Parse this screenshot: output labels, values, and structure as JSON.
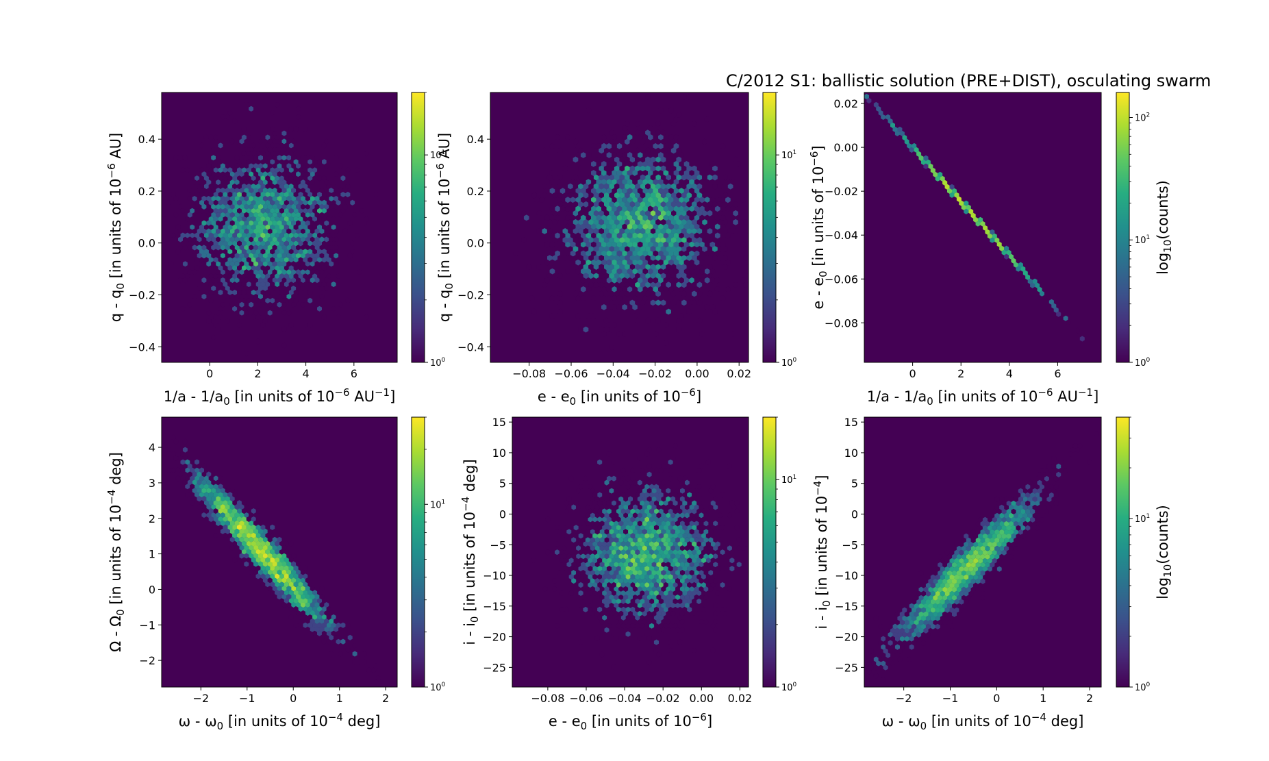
{
  "title": "C/2012 S1: ballistic solution (PRE+DIST), osculating swarm",
  "colormap": {
    "low": "#440154",
    "mid": "#21918c",
    "high": "#fde725"
  },
  "chart_data": [
    {
      "type": "heatmap",
      "subtype": "hexbin-log",
      "xlabel": {
        "main": "1/a - 1/a",
        "sub": "0",
        "tail": " [in units of 10",
        "sup": "−6",
        "end": " AU",
        "sup2": "−1",
        "end2": "]"
      },
      "ylabel": {
        "main": "q - q",
        "sub": "0",
        "tail": " [in units of 10",
        "sup": "−6",
        "end": " AU]"
      },
      "xlim": [
        -2,
        7.8
      ],
      "ylim": [
        -0.46,
        0.58
      ],
      "xticks": [
        0,
        2,
        4,
        6
      ],
      "xtick_labels": [
        "0",
        "2",
        "4",
        "6"
      ],
      "yticks": [
        -0.4,
        -0.2,
        0.0,
        0.2,
        0.4
      ],
      "ytick_labels": [
        "−0.4",
        "−0.2",
        "0.0",
        "0.2",
        "0.4"
      ],
      "distribution": {
        "kind": "gaussian",
        "center": [
          2.2,
          0.07
        ],
        "sigma": [
          1.5,
          0.15
        ],
        "n": 2400,
        "seed": 11
      },
      "colorbar": {
        "min": 1,
        "max": 20,
        "tick_values": [
          1,
          10
        ],
        "tick_labels": [
          [
            "10",
            "0"
          ],
          [
            "10",
            "1"
          ]
        ],
        "label": null
      }
    },
    {
      "type": "heatmap",
      "subtype": "hexbin-log",
      "xlabel": {
        "main": "e - e",
        "sub": "0",
        "tail": " [in units of 10",
        "sup": "−6",
        "end": "]"
      },
      "ylabel": {
        "main": "q - q",
        "sub": "0",
        "tail": " [in units of 10",
        "sup": "−6",
        "end": " AU]"
      },
      "xlim": [
        -0.0985,
        0.0245
      ],
      "ylim": [
        -0.46,
        0.58
      ],
      "xticks": [
        -0.08,
        -0.06,
        -0.04,
        -0.02,
        0.0,
        0.02
      ],
      "xtick_labels": [
        "−0.08",
        "−0.06",
        "−0.04",
        "−0.02",
        "0.00",
        "0.02"
      ],
      "yticks": [
        -0.4,
        -0.2,
        0.0,
        0.2,
        0.4
      ],
      "ytick_labels": [
        "−0.4",
        "−0.2",
        "0.0",
        "0.2",
        "0.4"
      ],
      "distribution": {
        "kind": "gaussian",
        "center": [
          -0.028,
          0.07
        ],
        "sigma": [
          0.019,
          0.15
        ],
        "n": 2400,
        "seed": 23
      },
      "colorbar": {
        "min": 1,
        "max": 20,
        "tick_values": [
          1,
          10
        ],
        "tick_labels": [
          [
            "10",
            "0"
          ],
          [
            "10",
            "1"
          ]
        ],
        "label": null
      }
    },
    {
      "type": "heatmap",
      "subtype": "hexbin-log",
      "xlabel": {
        "main": "1/a - 1/a",
        "sub": "0",
        "tail": " [in units of 10",
        "sup": "−6",
        "end": " AU",
        "sup2": "−1",
        "end2": "]"
      },
      "ylabel": {
        "main": "e - e",
        "sub": "0",
        "tail": " [in units of 10",
        "sup": "−6",
        "end": "]"
      },
      "xlim": [
        -2,
        7.8
      ],
      "ylim": [
        -0.098,
        0.025
      ],
      "xticks": [
        0,
        2,
        4,
        6
      ],
      "xtick_labels": [
        "0",
        "2",
        "4",
        "6"
      ],
      "yticks": [
        -0.08,
        -0.06,
        -0.04,
        -0.02,
        0.0,
        0.02
      ],
      "ytick_labels": [
        "−0.08",
        "−0.06",
        "−0.04",
        "−0.02",
        "0.00",
        "0.02"
      ],
      "distribution": {
        "kind": "linear",
        "slope": -0.01235,
        "intercept": 0.0,
        "x_center": 2.3,
        "x_sigma": 1.45,
        "x_range": [
          -1.9,
          7.0
        ],
        "n": 2400,
        "seed": 31
      },
      "colorbar": {
        "min": 1,
        "max": 160,
        "tick_values": [
          1,
          10,
          100
        ],
        "tick_labels": [
          [
            "10",
            "0"
          ],
          [
            "10",
            "1"
          ],
          [
            "10",
            "2"
          ]
        ],
        "label": {
          "main": "log",
          "sub": "10",
          "tail": "(counts)"
        }
      }
    },
    {
      "type": "heatmap",
      "subtype": "hexbin-log",
      "xlabel": {
        "main": "ω - ω",
        "sub": "0",
        "tail": " [in units of 10",
        "sup": "−4",
        "end": " deg]"
      },
      "ylabel": {
        "main": "Ω - Ω",
        "sub": "0",
        "tail": " [in units of 10",
        "sup": "−4",
        "end": " deg]"
      },
      "xlim": [
        -2.85,
        2.25
      ],
      "ylim": [
        -2.75,
        4.85
      ],
      "xticks": [
        -2,
        -1,
        0,
        1,
        2
      ],
      "xtick_labels": [
        "−2",
        "−1",
        "0",
        "1",
        "2"
      ],
      "yticks": [
        -2,
        -1,
        0,
        1,
        2,
        3,
        4
      ],
      "ytick_labels": [
        "−2",
        "−1",
        "0",
        "1",
        "2",
        "3",
        "4"
      ],
      "distribution": {
        "kind": "correlated",
        "center": [
          -0.7,
          1.1
        ],
        "sigma": [
          0.75,
          1.1
        ],
        "rho": -0.96,
        "n": 2600,
        "seed": 47
      },
      "colorbar": {
        "min": 1,
        "max": 30,
        "tick_values": [
          1,
          10
        ],
        "tick_labels": [
          [
            "10",
            "0"
          ],
          [
            "10",
            "1"
          ]
        ],
        "label": null
      }
    },
    {
      "type": "heatmap",
      "subtype": "hexbin-log",
      "xlabel": {
        "main": "e - e",
        "sub": "0",
        "tail": " [in units of 10",
        "sup": "−6",
        "end": "]"
      },
      "ylabel": {
        "main": "i - i",
        "sub": "0",
        "tail": " [in units of 10",
        "sup": "−4",
        "end": " deg]"
      },
      "xlim": [
        -0.0985,
        0.0245
      ],
      "ylim": [
        -28.2,
        15.8
      ],
      "xticks": [
        -0.08,
        -0.06,
        -0.04,
        -0.02,
        0.0,
        0.02
      ],
      "xtick_labels": [
        "−0.08",
        "−0.06",
        "−0.04",
        "−0.02",
        "0.00",
        "0.02"
      ],
      "yticks": [
        -25,
        -20,
        -15,
        -10,
        -5,
        0,
        5,
        10,
        15
      ],
      "ytick_labels": [
        "−25",
        "−20",
        "−15",
        "−10",
        "−5",
        "0",
        "5",
        "10",
        "15"
      ],
      "distribution": {
        "kind": "gaussian",
        "center": [
          -0.029,
          -6.5
        ],
        "sigma": [
          0.018,
          5.5
        ],
        "n": 2600,
        "seed": 59
      },
      "colorbar": {
        "min": 1,
        "max": 20,
        "tick_values": [
          1,
          10
        ],
        "tick_labels": [
          [
            "10",
            "0"
          ],
          [
            "10",
            "1"
          ]
        ],
        "label": null
      }
    },
    {
      "type": "heatmap",
      "subtype": "hexbin-log",
      "xlabel": {
        "main": "ω - ω",
        "sub": "0",
        "tail": " [in units of 10",
        "sup": "−4",
        "end": " deg]"
      },
      "ylabel": {
        "main": "i - i",
        "sub": "0",
        "tail": " [in units of 10",
        "sup": "−4",
        "end": "]"
      },
      "xlim": [
        -2.85,
        2.25
      ],
      "ylim": [
        -28.2,
        15.8
      ],
      "xticks": [
        -2,
        -1,
        0,
        1,
        2
      ],
      "xtick_labels": [
        "−2",
        "−1",
        "0",
        "1",
        "2"
      ],
      "yticks": [
        -25,
        -20,
        -15,
        -10,
        -5,
        0,
        5,
        10,
        15
      ],
      "ytick_labels": [
        "−25",
        "−20",
        "−15",
        "−10",
        "−5",
        "0",
        "5",
        "10",
        "15"
      ],
      "distribution": {
        "kind": "correlated",
        "center": [
          -0.6,
          -8.5
        ],
        "sigma": [
          0.75,
          6.0
        ],
        "rho": 0.95,
        "n": 2600,
        "seed": 71
      },
      "colorbar": {
        "min": 1,
        "max": 40,
        "tick_values": [
          1,
          10
        ],
        "tick_labels": [
          [
            "10",
            "0"
          ],
          [
            "10",
            "1"
          ]
        ],
        "label": {
          "main": "log",
          "sub": "10",
          "tail": "(counts)"
        }
      }
    }
  ]
}
